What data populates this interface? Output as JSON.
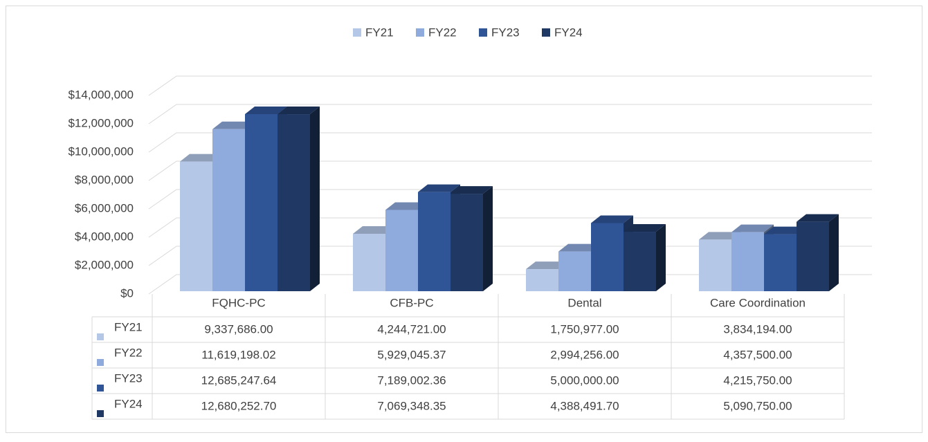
{
  "chart_data": {
    "type": "bar3d",
    "categories": [
      "FQHC-PC",
      "CFB-PC",
      "Dental",
      "Care Coordination"
    ],
    "series": [
      {
        "name": "FY21",
        "color": "#b4c7e7",
        "values": [
          9337686.0,
          4244721.0,
          1750977.0,
          3834194.0
        ],
        "value_labels": [
          "9,337,686.00",
          "4,244,721.00",
          "1,750,977.00",
          "3,834,194.00"
        ]
      },
      {
        "name": "FY22",
        "color": "#8faadc",
        "values": [
          11619198.02,
          5929045.37,
          2994256.0,
          4357500.0
        ],
        "value_labels": [
          "11,619,198.02",
          "5,929,045.37",
          "2,994,256.00",
          "4,357,500.00"
        ]
      },
      {
        "name": "FY23",
        "color": "#2f5597",
        "values": [
          12685247.64,
          7189002.36,
          5000000.0,
          4215750.0
        ],
        "value_labels": [
          "12,685,247.64",
          "7,189,002.36",
          "5,000,000.00",
          "4,215,750.00"
        ]
      },
      {
        "name": "FY24",
        "color": "#1f3864",
        "values": [
          12680252.7,
          7069348.35,
          4388491.7,
          5090750.0
        ],
        "value_labels": [
          "12,680,252.70",
          "7,069,348.35",
          "4,388,491.70",
          "5,090,750.00"
        ]
      }
    ],
    "ylim": [
      0,
      14000000
    ],
    "yticks": [
      {
        "value": 0,
        "label": "$0"
      },
      {
        "value": 2000000,
        "label": "$2,000,000"
      },
      {
        "value": 4000000,
        "label": "$4,000,000"
      },
      {
        "value": 6000000,
        "label": "$6,000,000"
      },
      {
        "value": 8000000,
        "label": "$8,000,000"
      },
      {
        "value": 10000000,
        "label": "$10,000,000"
      },
      {
        "value": 12000000,
        "label": "$12,000,000"
      },
      {
        "value": 14000000,
        "label": "$14,000,000"
      }
    ],
    "grid": true,
    "legend": "top",
    "data_table": true
  }
}
